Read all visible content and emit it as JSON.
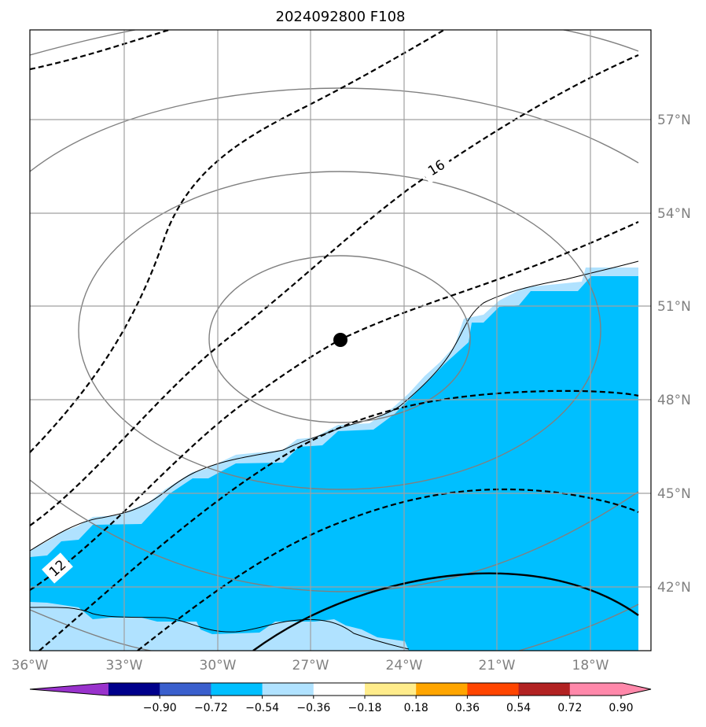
{
  "title": "2024092800 F108",
  "map": {
    "lon_labels": [
      "36°W",
      "33°W",
      "30°W",
      "27°W",
      "24°W",
      "21°W",
      "18°W"
    ],
    "lat_labels": [
      "57°N",
      "54°N",
      "51°N",
      "48°N",
      "45°N",
      "42°N"
    ],
    "lon_range": [
      -36,
      -16
    ],
    "lat_range": [
      40,
      60
    ],
    "grid": true,
    "center_marker": {
      "lon": -26,
      "lat": 49.9
    },
    "contour_labels": [
      "12",
      "16"
    ]
  },
  "colorbar": {
    "ticks": [
      "−0.90",
      "−0.72",
      "−0.54",
      "−0.36",
      "−0.18",
      "0.18",
      "0.36",
      "0.54",
      "0.72",
      "0.90"
    ],
    "colors": [
      "#9932cc",
      "#00008b",
      "#3a5fcd",
      "#00bfff",
      "#b0e2ff",
      "#ffffff",
      "#ffec8b",
      "#ffa500",
      "#ff4500",
      "#b22222",
      "#ff88aa",
      "#ff88aa"
    ],
    "fill_color": "#00bfff",
    "fill_edge_color": "#b0e2ff"
  }
}
